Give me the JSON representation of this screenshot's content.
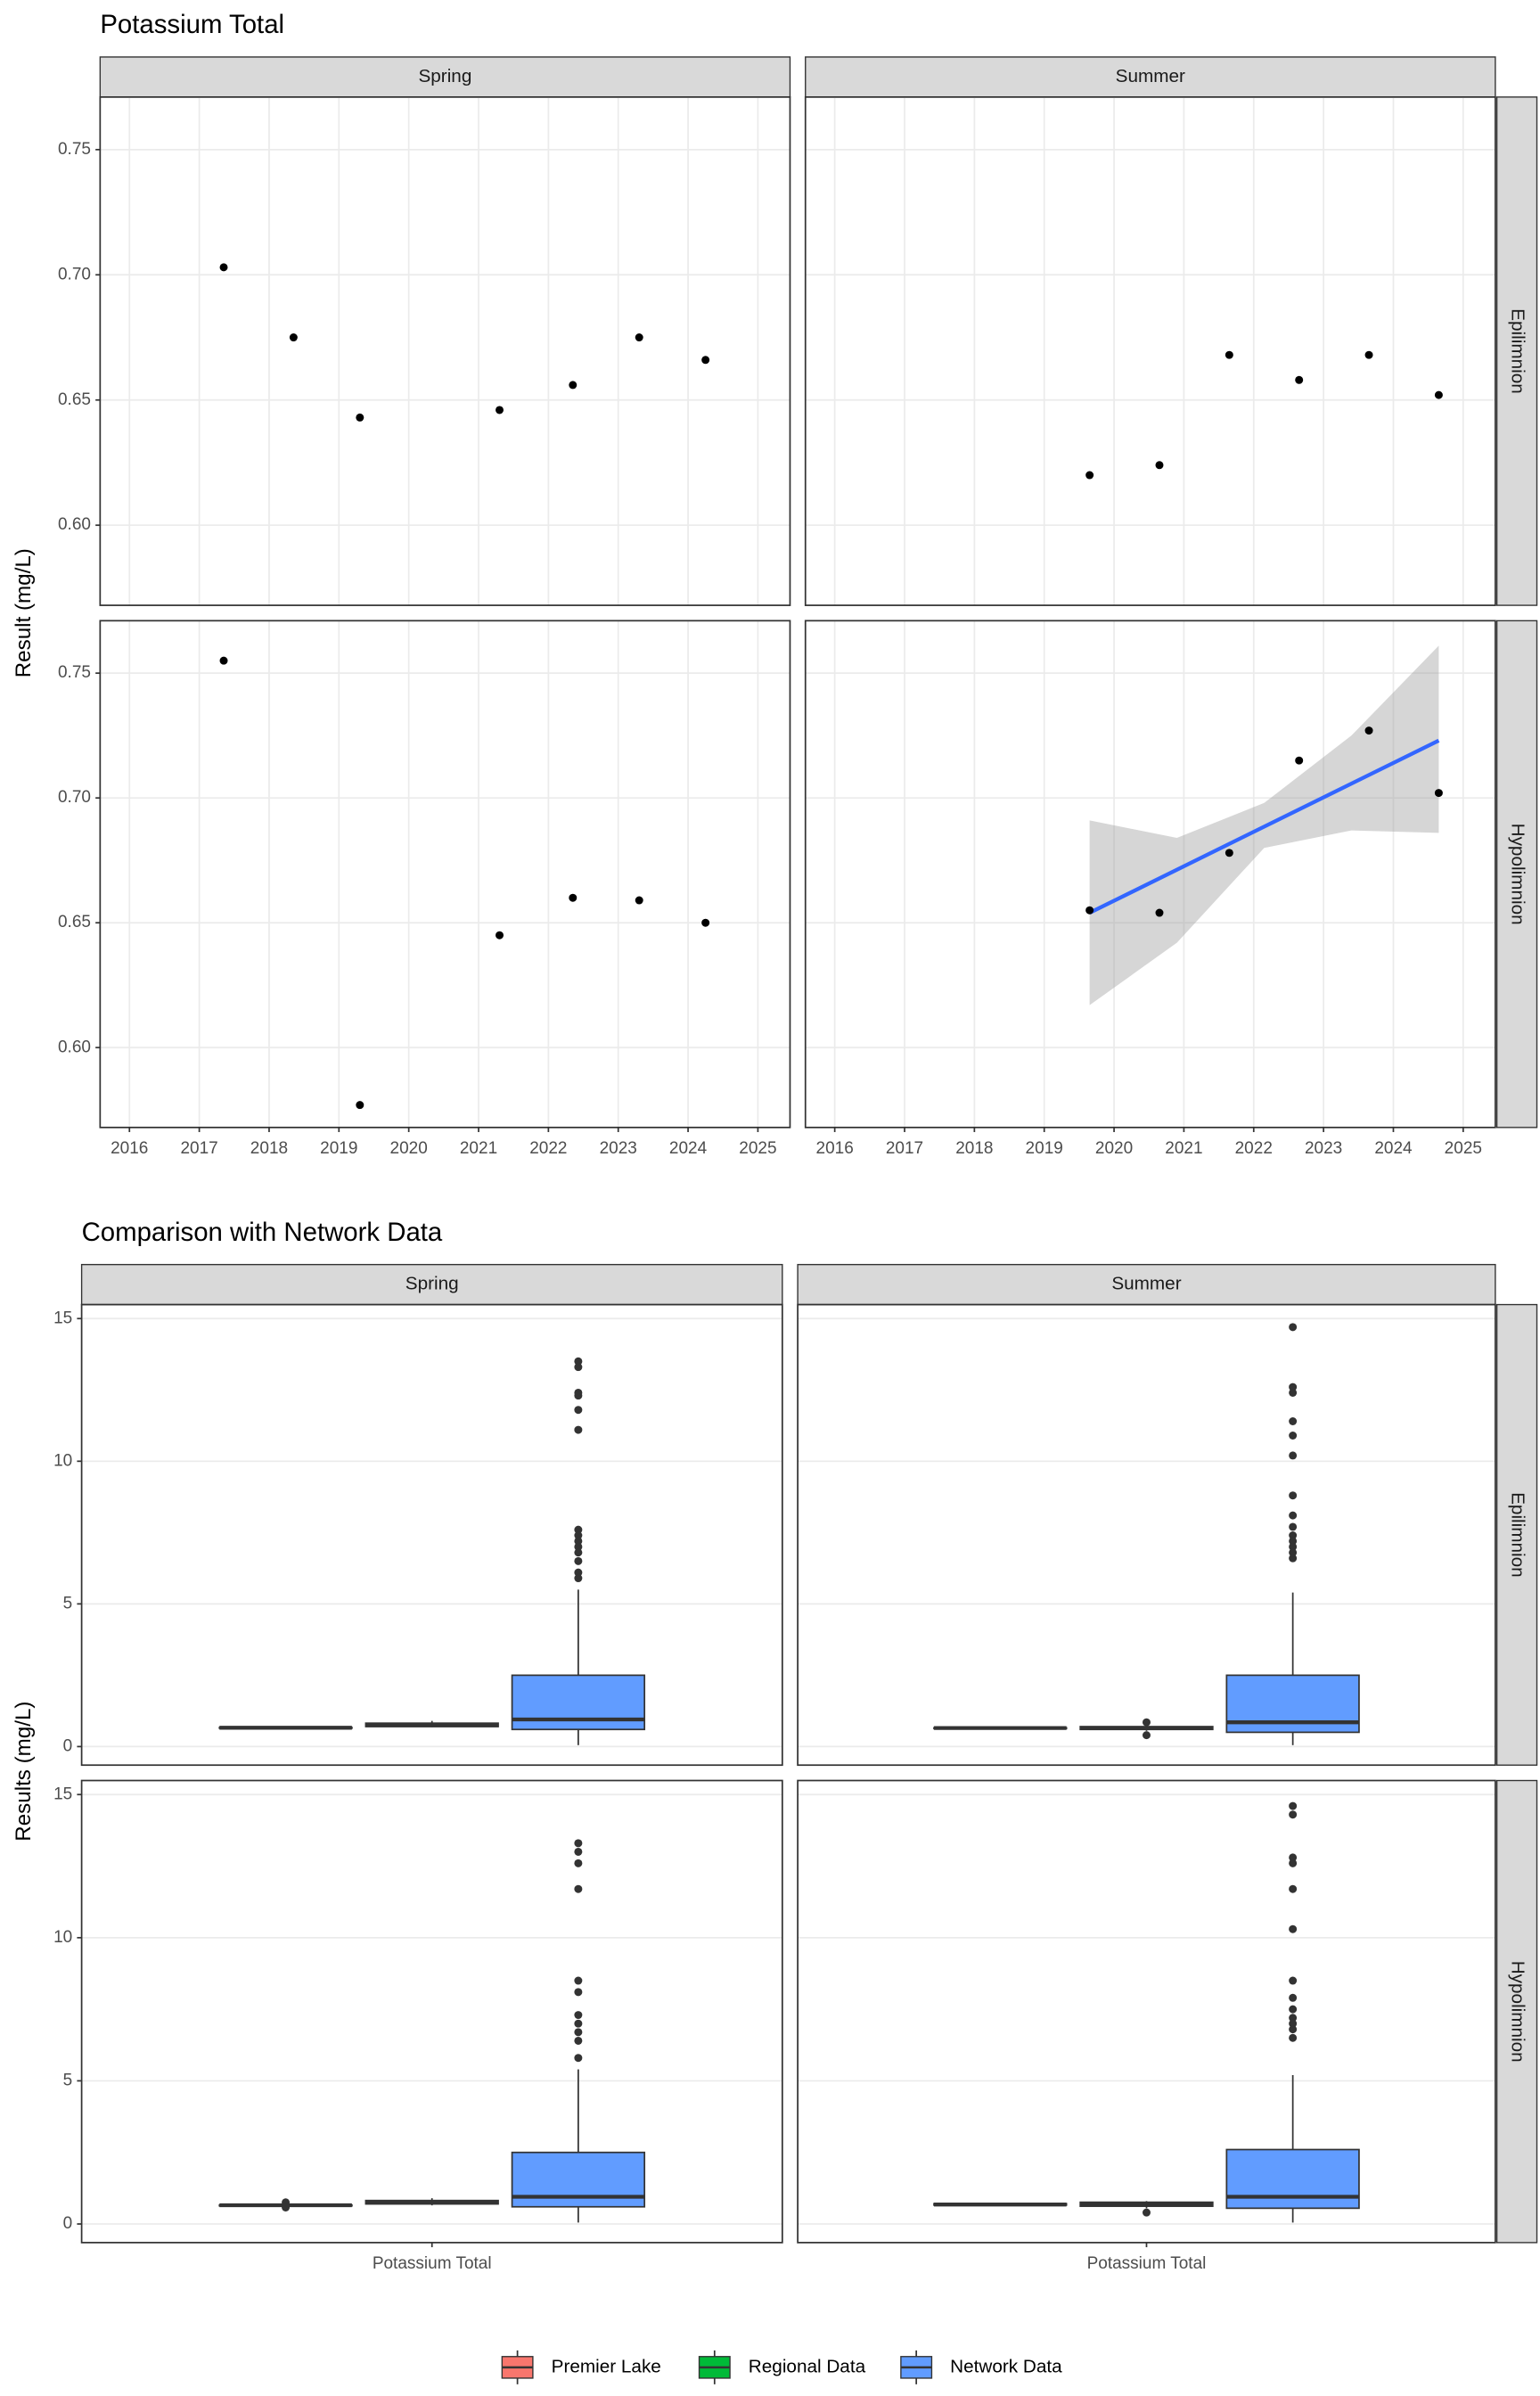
{
  "chart_data": [
    {
      "type": "scatter",
      "title": "Potassium Total",
      "y_label": "Result (mg/L)",
      "facets": {
        "cols": [
          "Spring",
          "Summer"
        ],
        "rows": [
          "Epilimnion",
          "Hypolimnion"
        ]
      },
      "xlim": [
        2015.58,
        2025.46
      ],
      "xticks": [
        2016,
        2017,
        2018,
        2019,
        2020,
        2021,
        2022,
        2023,
        2024,
        2025
      ],
      "ylim": [
        0.568,
        0.771
      ],
      "yticks": [
        {
          "value": 0.6,
          "label": "0.60"
        },
        0.65,
        {
          "value": 0.7,
          "label": "0.70"
        },
        0.75
      ],
      "grid": true,
      "color": "#000000",
      "panels": [
        [
          {
            "x": [
              2017.35,
              2018.35,
              2019.3,
              2021.3,
              2022.35,
              2023.3,
              2024.25
            ],
            "y": [
              0.703,
              0.675,
              0.643,
              0.646,
              0.656,
              0.675,
              0.666
            ]
          },
          {
            "x": [
              2019.65,
              2020.65,
              2021.65,
              2022.65,
              2023.65,
              2024.65
            ],
            "y": [
              0.62,
              0.624,
              0.668,
              0.658,
              0.668,
              0.652
            ]
          }
        ],
        [
          {
            "x": [
              2017.35,
              2019.3,
              2021.3,
              2022.35,
              2023.3,
              2024.25
            ],
            "y": [
              0.755,
              0.577,
              0.645,
              0.66,
              0.659,
              0.65
            ]
          },
          {
            "x": [
              2019.65,
              2020.65,
              2021.65,
              2022.65,
              2023.65,
              2024.65
            ],
            "y": [
              0.655,
              0.654,
              0.678,
              0.715,
              0.727,
              0.702
            ],
            "trend": {
              "x": [
                2019.65,
                2024.65
              ],
              "y": [
                0.654,
                0.723
              ],
              "color": "#3366FF"
            },
            "band": {
              "x": [
                2019.65,
                2020.9,
                2022.15,
                2023.4,
                2024.65
              ],
              "upper": [
                0.691,
                0.684,
                0.698,
                0.725,
                0.761
              ],
              "lower": [
                0.617,
                0.642,
                0.68,
                0.687,
                0.686
              ],
              "color": "#999999"
            }
          }
        ]
      ]
    },
    {
      "type": "boxplot",
      "title": "Comparison with Network Data",
      "y_label": "Results (mg/L)",
      "facets": {
        "cols": [
          "Spring",
          "Summer"
        ],
        "rows": [
          "Epilimnion",
          "Hypolimnion"
        ]
      },
      "categories": [
        "Potassium Total"
      ],
      "ylim": [
        -0.65,
        15.49
      ],
      "yticks": [
        0,
        5,
        10,
        15
      ],
      "grid": true,
      "series": [
        {
          "name": "Premier Lake",
          "color": "#F8766D"
        },
        {
          "name": "Regional Data",
          "color": "#00BA38"
        },
        {
          "name": "Network Data",
          "color": "#619CFF"
        }
      ],
      "panels": [
        [
          [
            {
              "min": 0.64,
              "q1": 0.65,
              "median": 0.66,
              "q3": 0.67,
              "max": 0.7,
              "outliers": []
            },
            {
              "min": 0.68,
              "q1": 0.7,
              "median": 0.75,
              "q3": 0.82,
              "max": 0.9,
              "outliers": []
            },
            {
              "min": 0.05,
              "q1": 0.6,
              "median": 0.95,
              "q3": 2.5,
              "max": 5.5,
              "outliers": [
                13.5,
                13.3,
                12.4,
                12.3,
                11.8,
                11.1,
                7.6,
                7.4,
                7.2,
                7.0,
                6.8,
                6.5,
                6.1,
                5.9
              ]
            }
          ],
          [
            {
              "min": 0.62,
              "q1": 0.63,
              "median": 0.65,
              "q3": 0.66,
              "max": 0.67,
              "outliers": []
            },
            {
              "min": 0.55,
              "q1": 0.6,
              "median": 0.65,
              "q3": 0.7,
              "max": 0.75,
              "outliers": [
                0.85,
                0.4
              ]
            },
            {
              "min": 0.05,
              "q1": 0.5,
              "median": 0.85,
              "q3": 2.5,
              "max": 5.4,
              "outliers": [
                14.7,
                12.6,
                12.4,
                11.4,
                10.9,
                10.2,
                8.8,
                8.1,
                7.7,
                7.4,
                7.2,
                7.0,
                6.8,
                6.6
              ]
            }
          ]
        ],
        [
          [
            {
              "min": 0.645,
              "q1": 0.65,
              "median": 0.655,
              "q3": 0.66,
              "max": 0.66,
              "outliers": [
                0.755,
                0.577
              ]
            },
            {
              "min": 0.65,
              "q1": 0.7,
              "median": 0.75,
              "q3": 0.82,
              "max": 0.9,
              "outliers": []
            },
            {
              "min": 0.05,
              "q1": 0.6,
              "median": 0.95,
              "q3": 2.5,
              "max": 5.4,
              "outliers": [
                13.3,
                13.0,
                12.6,
                11.7,
                8.5,
                8.1,
                7.3,
                7.0,
                6.7,
                6.4,
                5.8
              ]
            }
          ],
          [
            {
              "min": 0.65,
              "q1": 0.66,
              "median": 0.68,
              "q3": 0.71,
              "max": 0.73,
              "outliers": []
            },
            {
              "min": 0.55,
              "q1": 0.62,
              "median": 0.7,
              "q3": 0.76,
              "max": 0.8,
              "outliers": [
                0.4
              ]
            },
            {
              "min": 0.05,
              "q1": 0.55,
              "median": 0.95,
              "q3": 2.6,
              "max": 5.2,
              "outliers": [
                14.6,
                14.3,
                12.8,
                12.6,
                11.7,
                10.3,
                8.5,
                7.9,
                7.5,
                7.2,
                7.0,
                6.8,
                6.5
              ]
            }
          ]
        ]
      ]
    }
  ]
}
